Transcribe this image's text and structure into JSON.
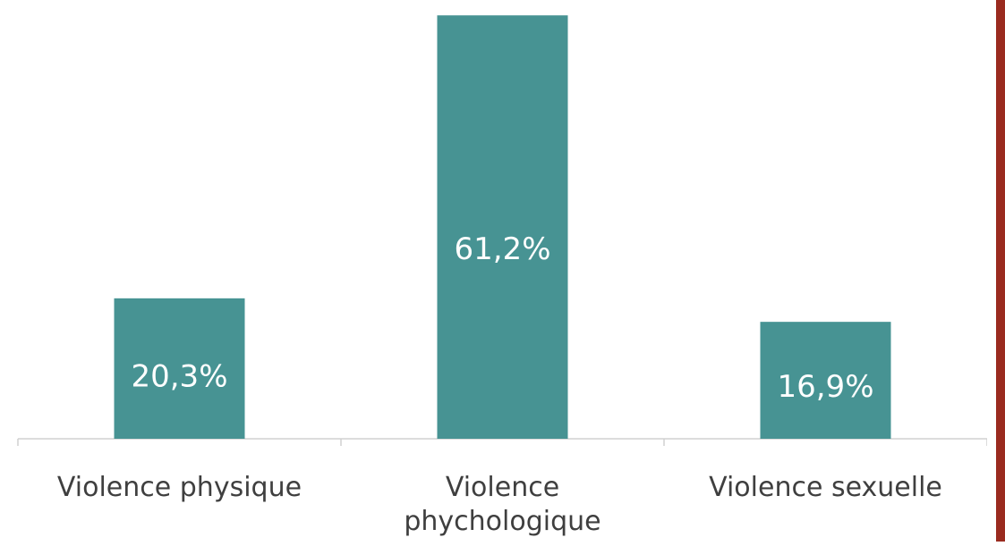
{
  "colors": {
    "bar": "#479393",
    "side_bar": "#9a2b1f",
    "axis": "#d0d0d0",
    "category_text": "#3f3f3f",
    "value_text": "#ffffff"
  },
  "chart_data": {
    "type": "bar",
    "title": "",
    "xlabel": "",
    "ylabel": "",
    "ylim": [
      0,
      62
    ],
    "grid": false,
    "categories": [
      [
        "Violence physique"
      ],
      [
        "Violence",
        "phychologique"
      ],
      [
        "Violence sexuelle"
      ]
    ],
    "values": [
      20.3,
      61.2,
      16.9
    ],
    "value_labels": [
      "20,3%",
      "61,2%",
      "16,9%"
    ]
  }
}
